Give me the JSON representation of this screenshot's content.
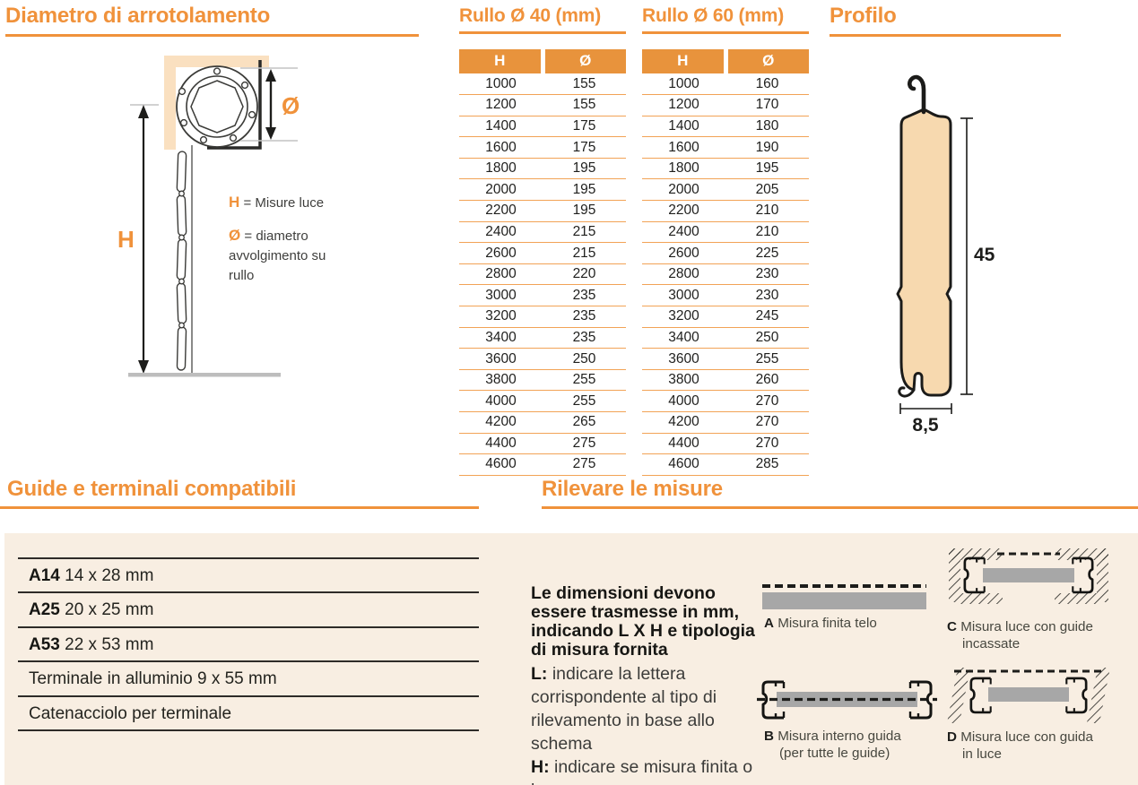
{
  "palette": {
    "accent": "#F0923B",
    "table_header_bg": "#E8933C",
    "row_line": "#F2A356",
    "panel_bg": "#F8EEE2",
    "wall_peach": "#FAE0C0",
    "slat_fill": "#F7D9AF",
    "gray_bar": "#A7A7A7",
    "dark_text": "#1D1D1B"
  },
  "diametro": {
    "title": "Diametro di arrotolamento",
    "h_symbol": "H",
    "d_symbol": "Ø",
    "legend_h_symbol": "H",
    "legend_h_text": "= Misure luce",
    "legend_d_symbol": "Ø",
    "legend_d_text": "= diametro avvolgimento su rullo"
  },
  "rullo40": {
    "title": "Rullo Ø 40 (mm)",
    "col_h": "H",
    "col_d": "Ø",
    "rows": [
      [
        "1000",
        "155"
      ],
      [
        "1200",
        "155"
      ],
      [
        "1400",
        "175"
      ],
      [
        "1600",
        "175"
      ],
      [
        "1800",
        "195"
      ],
      [
        "2000",
        "195"
      ],
      [
        "2200",
        "195"
      ],
      [
        "2400",
        "215"
      ],
      [
        "2600",
        "215"
      ],
      [
        "2800",
        "220"
      ],
      [
        "3000",
        "235"
      ],
      [
        "3200",
        "235"
      ],
      [
        "3400",
        "235"
      ],
      [
        "3600",
        "250"
      ],
      [
        "3800",
        "255"
      ],
      [
        "4000",
        "255"
      ],
      [
        "4200",
        "265"
      ],
      [
        "4400",
        "275"
      ],
      [
        "4600",
        "275"
      ]
    ]
  },
  "rullo60": {
    "title": "Rullo Ø 60 (mm)",
    "col_h": "H",
    "col_d": "Ø",
    "rows": [
      [
        "1000",
        "160"
      ],
      [
        "1200",
        "170"
      ],
      [
        "1400",
        "180"
      ],
      [
        "1600",
        "190"
      ],
      [
        "1800",
        "195"
      ],
      [
        "2000",
        "205"
      ],
      [
        "2200",
        "210"
      ],
      [
        "2400",
        "210"
      ],
      [
        "2600",
        "225"
      ],
      [
        "2800",
        "230"
      ],
      [
        "3000",
        "230"
      ],
      [
        "3200",
        "245"
      ],
      [
        "3400",
        "250"
      ],
      [
        "3600",
        "255"
      ],
      [
        "3800",
        "260"
      ],
      [
        "4000",
        "270"
      ],
      [
        "4200",
        "270"
      ],
      [
        "4400",
        "270"
      ],
      [
        "4600",
        "285"
      ]
    ]
  },
  "profilo": {
    "title": "Profilo",
    "height_dim": "45",
    "width_dim": "8,5"
  },
  "guide": {
    "title": "Guide e terminali compatibili",
    "items": [
      {
        "code": "A14",
        "text": "14 x 28 mm"
      },
      {
        "code": "A25",
        "text": "20 x 25 mm"
      },
      {
        "code": "A53",
        "text": "22 x 53 mm"
      },
      {
        "code": "",
        "text": "Terminale in alluminio 9 x 55 mm"
      },
      {
        "code": "",
        "text": "Catenacciolo per terminale"
      }
    ]
  },
  "rilevare": {
    "title": "Rilevare le misure",
    "intro": "Le dimensioni devono essere trasmesse in mm, indicando L X H e tipologia di misura fornita",
    "l_label": "L:",
    "l_text": " indicare la lettera corrispondente al tipo di rilevamento in base allo schema",
    "h_label": "H:",
    "h_text": " indicare se misura finita o luce",
    "diagrams": [
      {
        "letter": "A",
        "caption": "Misura finita telo",
        "caption2": ""
      },
      {
        "letter": "B",
        "caption": "Misura interno guida",
        "caption2": "(per tutte le guide)"
      },
      {
        "letter": "C",
        "caption": "Misura luce con guide",
        "caption2": "incassate"
      },
      {
        "letter": "D",
        "caption": "Misura luce con guida",
        "caption2": "in luce"
      }
    ]
  }
}
